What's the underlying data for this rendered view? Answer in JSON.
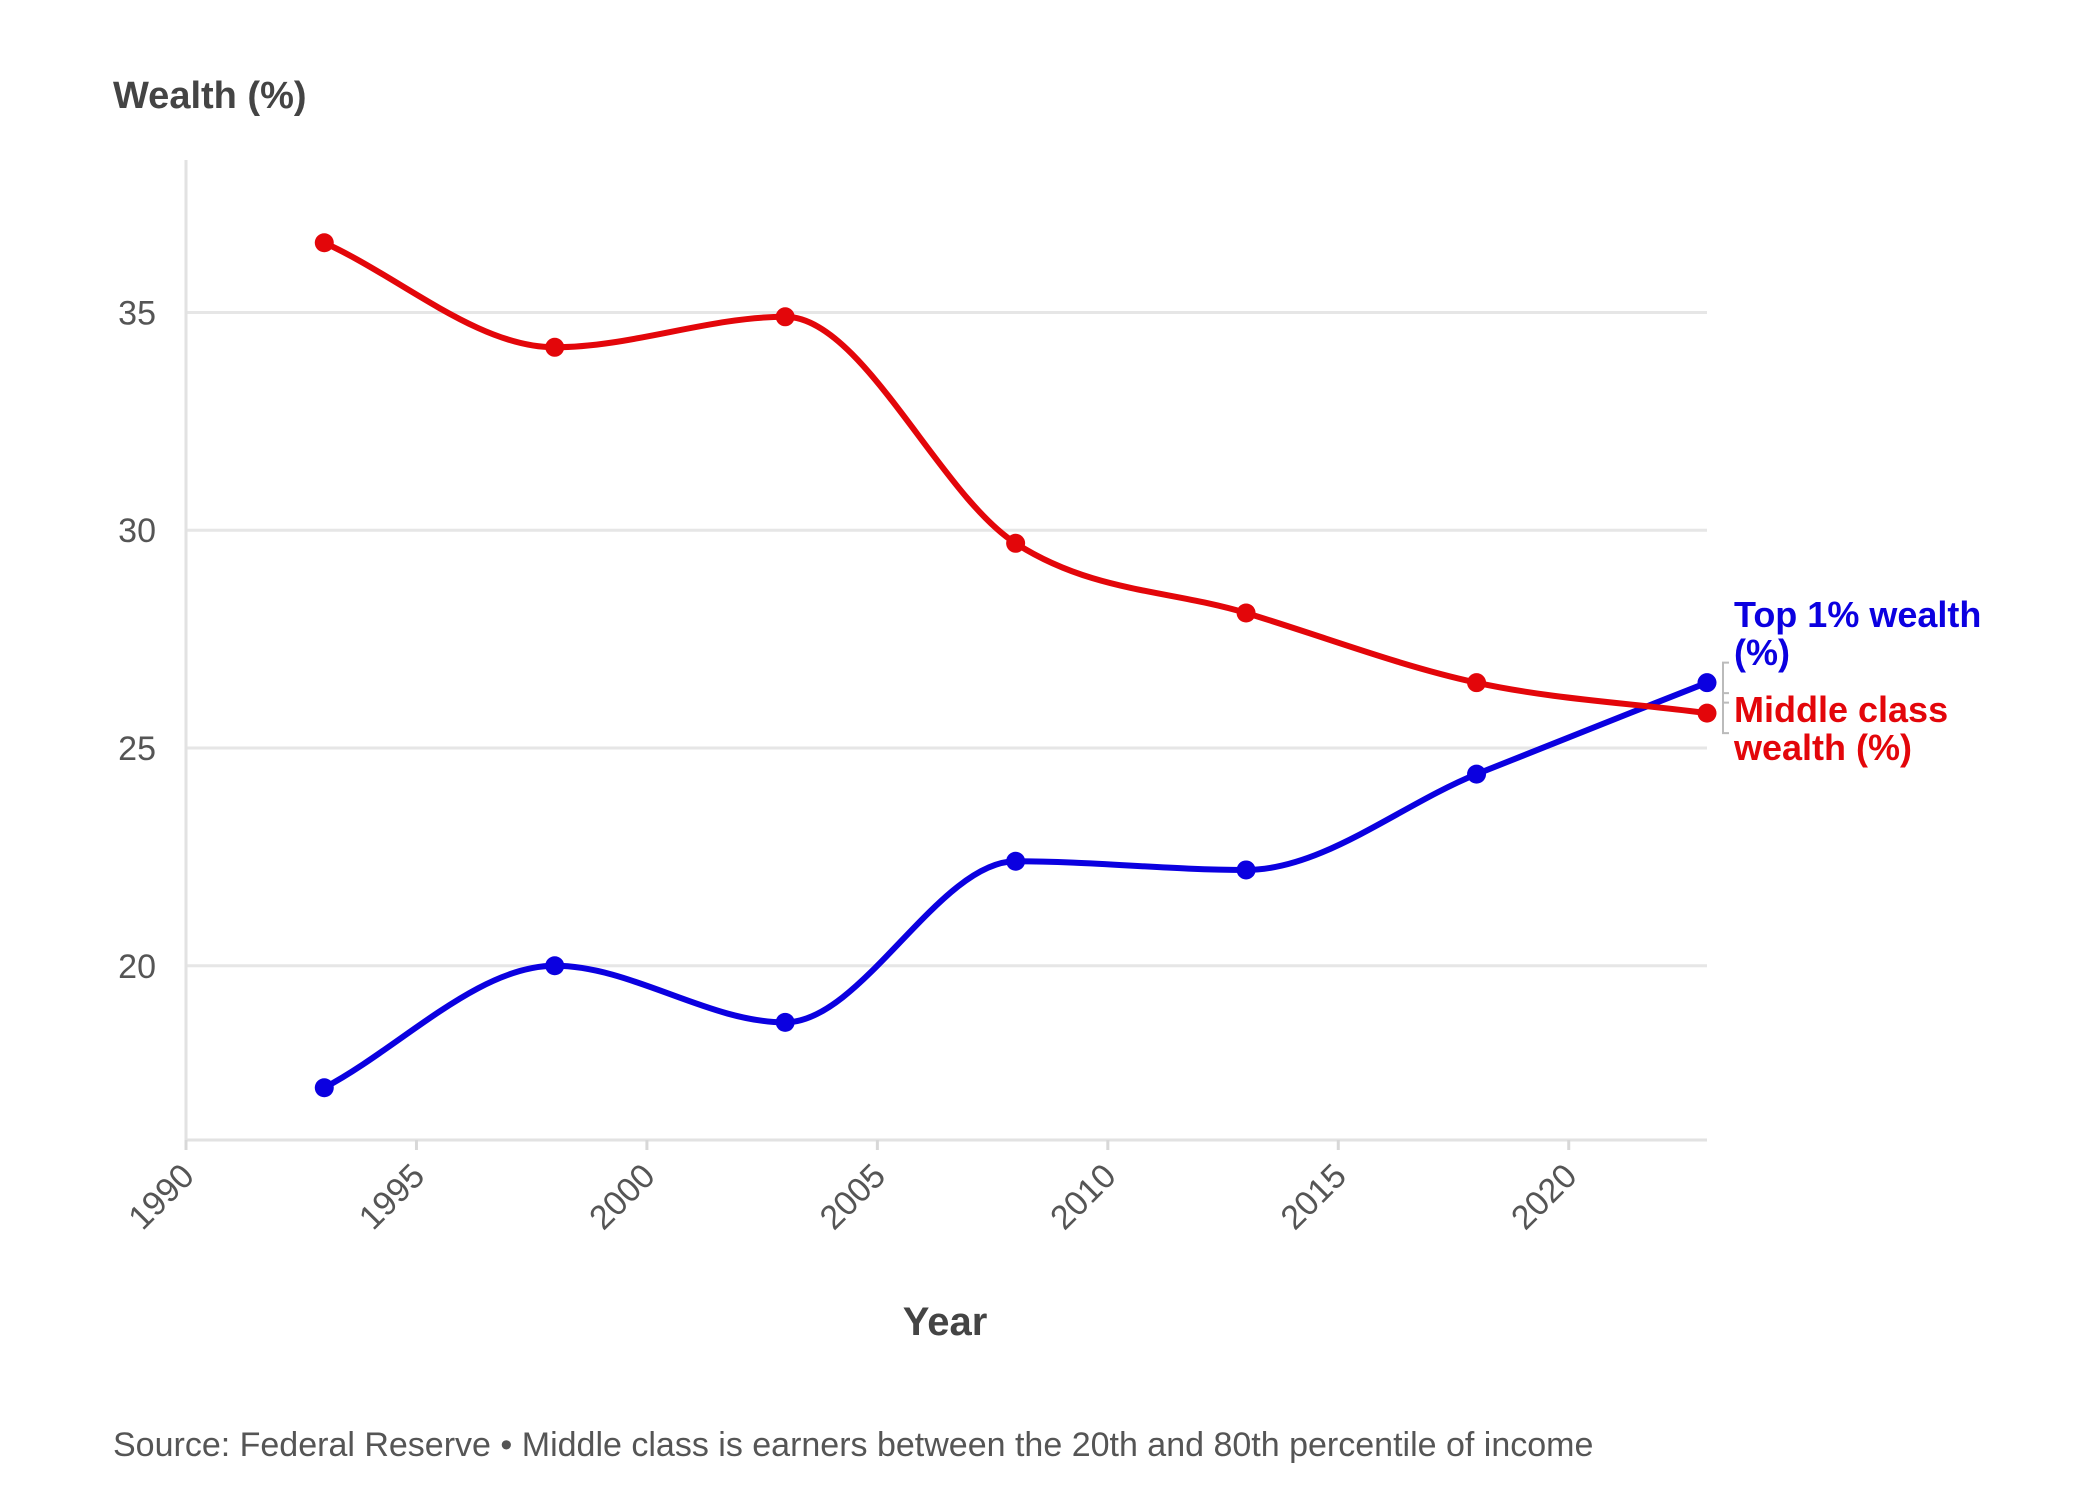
{
  "chart_data": {
    "type": "line",
    "ylabel": "Wealth (%)",
    "xlabel": "Year",
    "xlim": [
      1990,
      2023
    ],
    "ylim": [
      16,
      38.5
    ],
    "x_ticks": [
      1990,
      1995,
      2000,
      2005,
      2010,
      2015,
      2020
    ],
    "y_ticks": [
      20,
      25,
      30,
      35
    ],
    "grid": true,
    "legend": "direct labels at right end of lines",
    "x": [
      1993,
      1998,
      2003,
      2008,
      2013,
      2018,
      2023
    ],
    "series": [
      {
        "name": "Top 1% wealth (%)",
        "label_lines": [
          "Top 1% wealth",
          "(%)"
        ],
        "color": "#0b00e0",
        "values": [
          17.2,
          20.0,
          18.7,
          22.4,
          22.2,
          24.4,
          26.5
        ]
      },
      {
        "name": "Middle class wealth (%)",
        "label_lines": [
          "Middle class",
          "wealth (%)"
        ],
        "color": "#e3060a",
        "values": [
          36.6,
          34.2,
          34.9,
          29.7,
          28.1,
          26.5,
          25.8
        ]
      }
    ],
    "source": "Source: Federal Reserve • Middle class is earners between the 20th and 80th percentile of income"
  }
}
